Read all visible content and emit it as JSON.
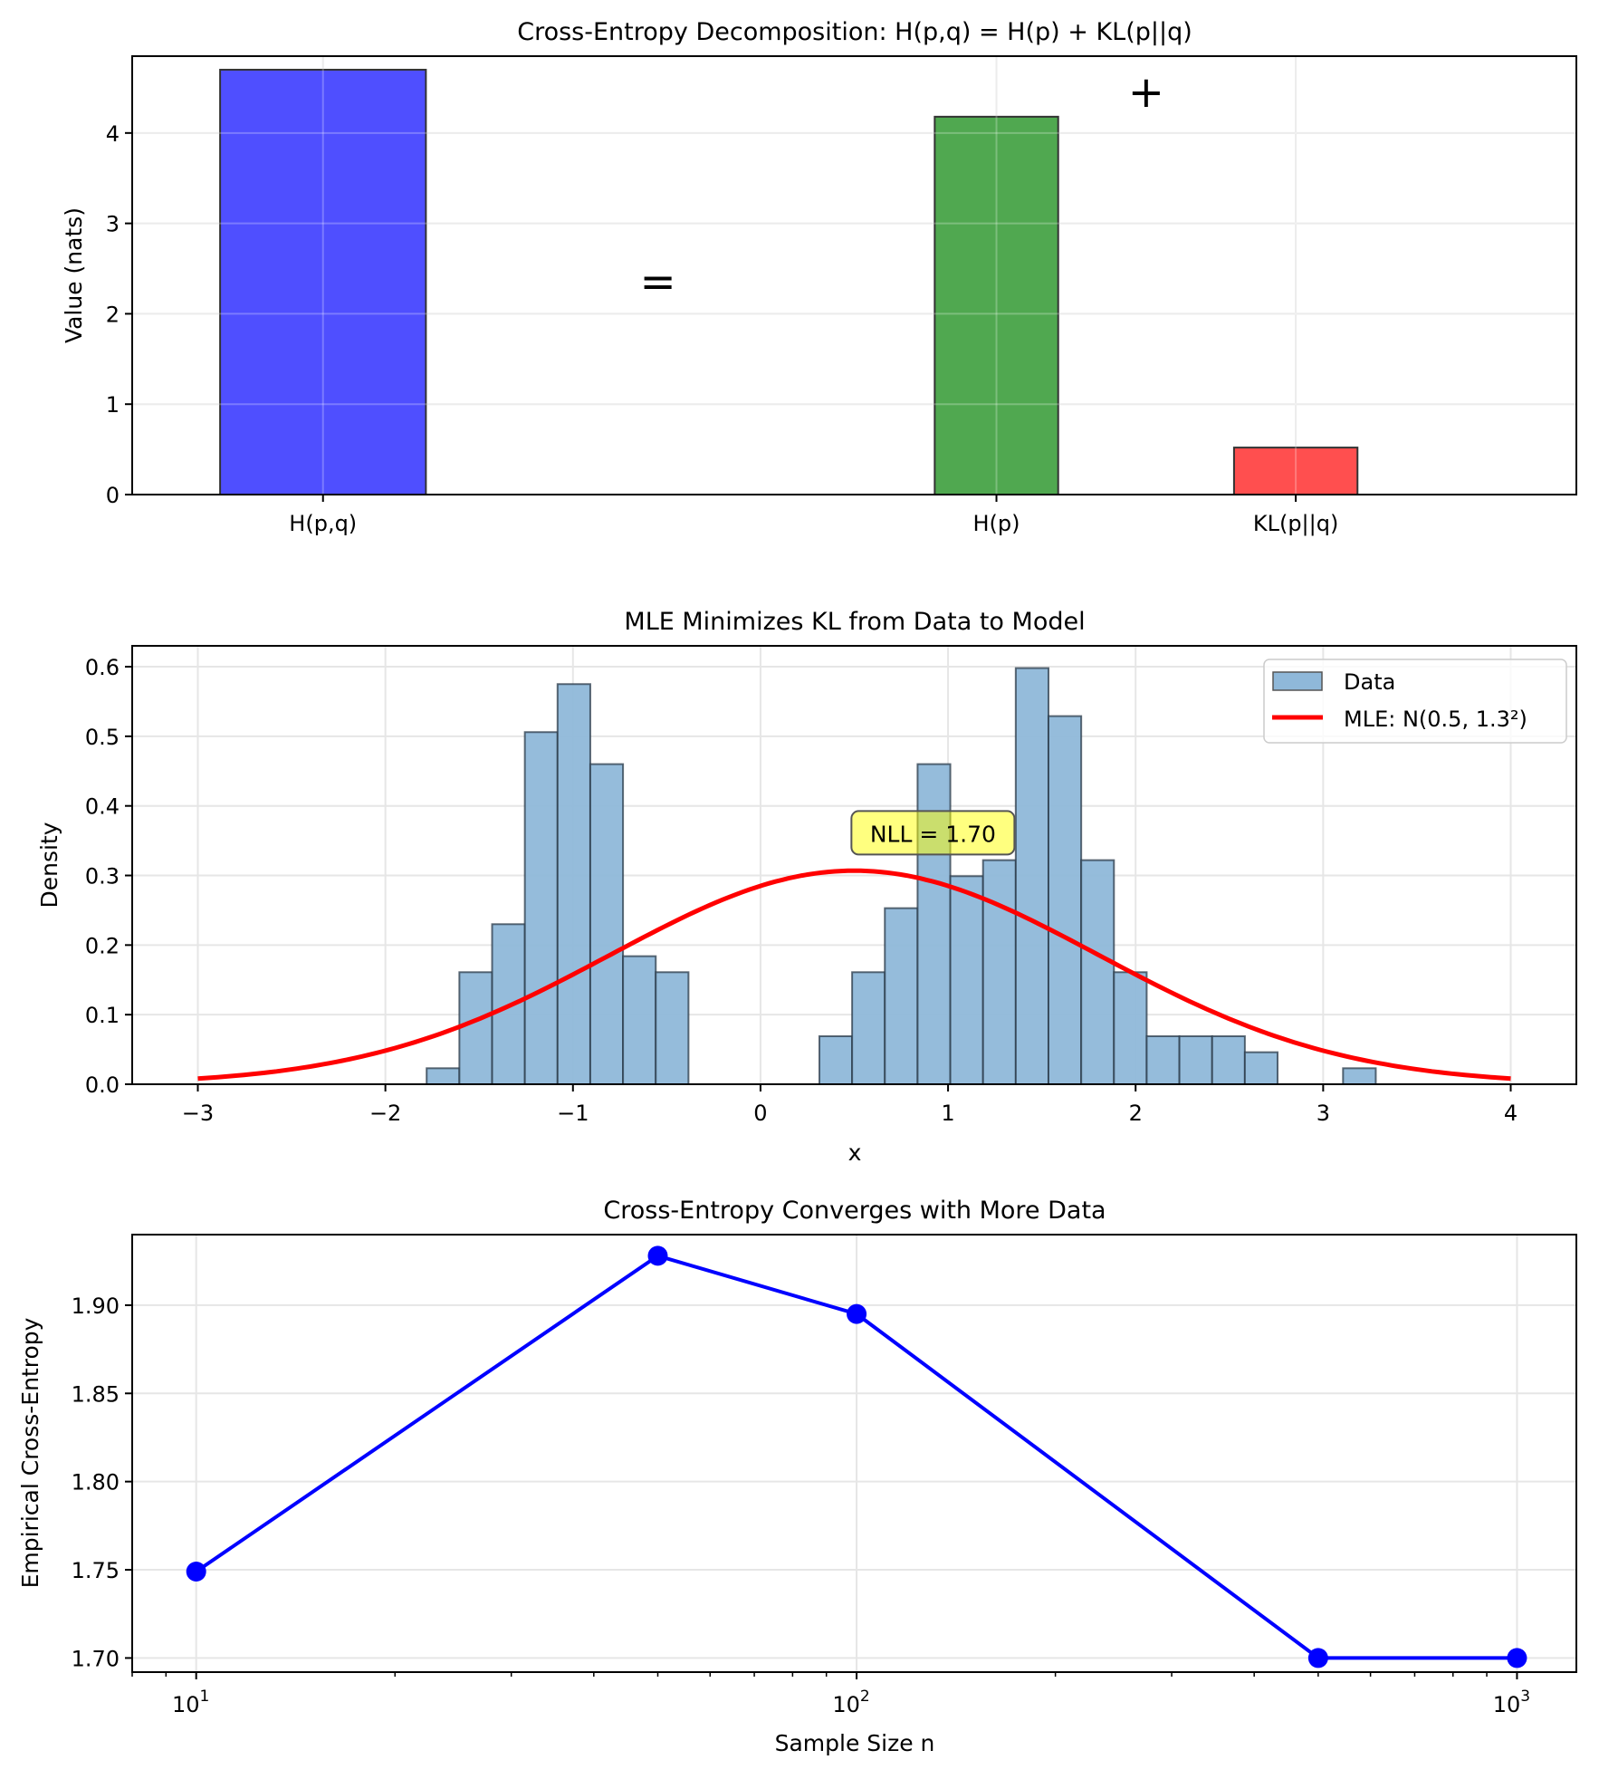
{
  "chart_data": [
    {
      "type": "bar",
      "title": "Cross-Entropy Decomposition: H(p,q) = H(p) + KL(p||q)",
      "xlabel": "",
      "ylabel": "Value (nats)",
      "ylim": [
        0,
        4.85
      ],
      "yticks": [
        0,
        1,
        2,
        3,
        4
      ],
      "categories": [
        "H(p,q)",
        "H(p)",
        "KL(p||q)"
      ],
      "positions": [
        0,
        1.8,
        2.6
      ],
      "values": [
        4.7,
        4.18,
        0.52
      ],
      "colors": [
        "#4b4bff",
        "#4ca64c",
        "#ff4b4b"
      ],
      "annotations": [
        {
          "text": "=",
          "x": 0.9,
          "y": 2.35
        },
        {
          "text": "+",
          "x": 2.2,
          "y": 4.45
        }
      ],
      "grid": true
    },
    {
      "type": "histogram",
      "title": "MLE Minimizes KL from Data to Model",
      "xlabel": "x",
      "ylabel": "Density",
      "xlim": [
        -3.35,
        4.35
      ],
      "ylim": [
        0,
        0.63
      ],
      "xticks": [
        -3,
        -2,
        -1,
        0,
        1,
        2,
        3,
        4
      ],
      "xtick_labels": [
        "−3",
        "−2",
        "−1",
        "0",
        "1",
        "2",
        "3",
        "4"
      ],
      "yticks": [
        0.0,
        0.1,
        0.2,
        0.3,
        0.4,
        0.5,
        0.6
      ],
      "ytick_labels": [
        "0.0",
        "0.1",
        "0.2",
        "0.3",
        "0.4",
        "0.5",
        "0.6"
      ],
      "bin_start": -1.78,
      "bin_width": 0.1745,
      "bins": [
        0.023,
        0.161,
        0.23,
        0.506,
        0.575,
        0.46,
        0.184,
        0.161,
        0,
        0,
        0,
        0,
        0.069,
        0.161,
        0.253,
        0.46,
        0.299,
        0.322,
        0.598,
        0.529,
        0.322,
        0.161,
        0.069,
        0.069,
        0.069,
        0.046,
        0,
        0,
        0.023
      ],
      "hist_color": "#8fb8d9",
      "curve": {
        "label": "MLE: N(0.5, 1.3²)",
        "mu": 0.5,
        "sigma": 1.3,
        "x_range": [
          -3,
          4
        ],
        "color": "#ff0000"
      },
      "legend": {
        "position": "top-right",
        "entries": [
          "Data",
          "MLE: N(0.5, 1.3²)"
        ]
      },
      "annotation": {
        "text": "NLL = 1.70",
        "x": 0.9,
        "y": 0.36
      },
      "grid": true
    },
    {
      "type": "line",
      "title": "Cross-Entropy Converges with More Data",
      "xlabel": "Sample Size n",
      "ylabel": "Empirical Cross-Entropy",
      "xscale": "log",
      "xlim": [
        8.0,
        1230
      ],
      "ylim": [
        1.692,
        1.94
      ],
      "yticks": [
        1.7,
        1.75,
        1.8,
        1.85,
        1.9
      ],
      "ytick_labels": [
        "1.70",
        "1.75",
        "1.80",
        "1.85",
        "1.90"
      ],
      "xticks": [
        10,
        100,
        1000
      ],
      "xtick_labels": [
        {
          "base": "10",
          "exp": "1"
        },
        {
          "base": "10",
          "exp": "2"
        },
        {
          "base": "10",
          "exp": "3"
        }
      ],
      "x": [
        10,
        50,
        100,
        500,
        1000
      ],
      "y": [
        1.749,
        1.928,
        1.895,
        1.7,
        1.7
      ],
      "color": "#0000ff",
      "grid": true
    }
  ]
}
